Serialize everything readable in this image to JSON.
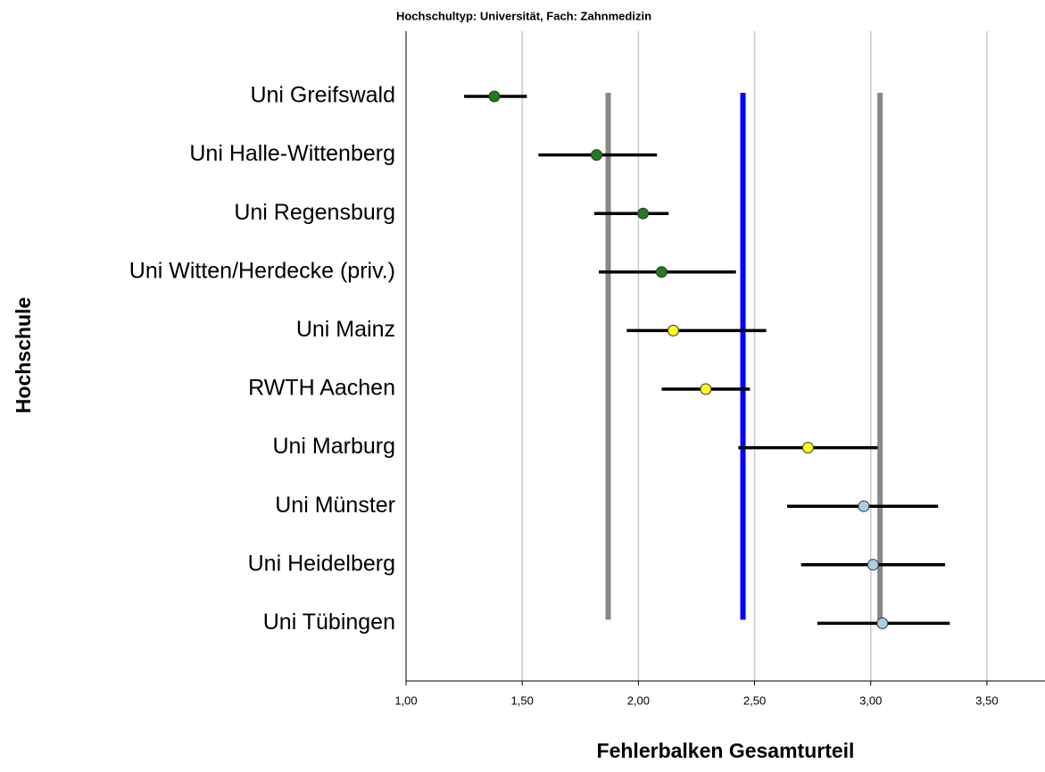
{
  "chart_data": {
    "type": "errorbar",
    "title": "Hochschultyp: Universität, Fach: Zahnmedizin",
    "xlabel": "Fehlerbalken Gesamturteil",
    "ylabel": "Hochschule",
    "categories": [
      "Uni Greifswald",
      "Uni Halle-Wittenberg",
      "Uni Regensburg",
      "Uni Witten/Herdecke (priv.)",
      "Uni Mainz",
      "RWTH Aachen",
      "Uni Marburg",
      "Uni Münster",
      "Uni Heidelberg",
      "Uni Tübingen"
    ],
    "values": [
      1.38,
      1.82,
      2.02,
      2.1,
      2.15,
      2.29,
      2.73,
      2.97,
      3.01,
      3.05
    ],
    "lower": [
      1.25,
      1.57,
      1.81,
      1.83,
      1.95,
      2.1,
      2.43,
      2.64,
      2.7,
      2.77
    ],
    "upper": [
      1.52,
      2.08,
      2.13,
      2.42,
      2.55,
      2.48,
      3.03,
      3.29,
      3.32,
      3.34
    ],
    "colors": [
      "#1e7b1e",
      "#1e7b1e",
      "#1e7b1e",
      "#1e7b1e",
      "#ffff1a",
      "#ffff1a",
      "#ffff1a",
      "#a9cfe0",
      "#a9cfe0",
      "#a9cfe0"
    ],
    "reference_lines": [
      {
        "value": 1.87,
        "color": "#888888"
      },
      {
        "value": 2.45,
        "color": "#0000ff"
      },
      {
        "value": 3.04,
        "color": "#888888"
      }
    ],
    "xlim": [
      1.0,
      3.75
    ],
    "xticks": [
      {
        "value": 1.0,
        "label": "1,00"
      },
      {
        "value": 1.5,
        "label": "1,50"
      },
      {
        "value": 2.0,
        "label": "2,00"
      },
      {
        "value": 2.5,
        "label": "2,50"
      },
      {
        "value": 3.0,
        "label": "3,00"
      },
      {
        "value": 3.5,
        "label": "3,50"
      }
    ],
    "grid": true
  }
}
